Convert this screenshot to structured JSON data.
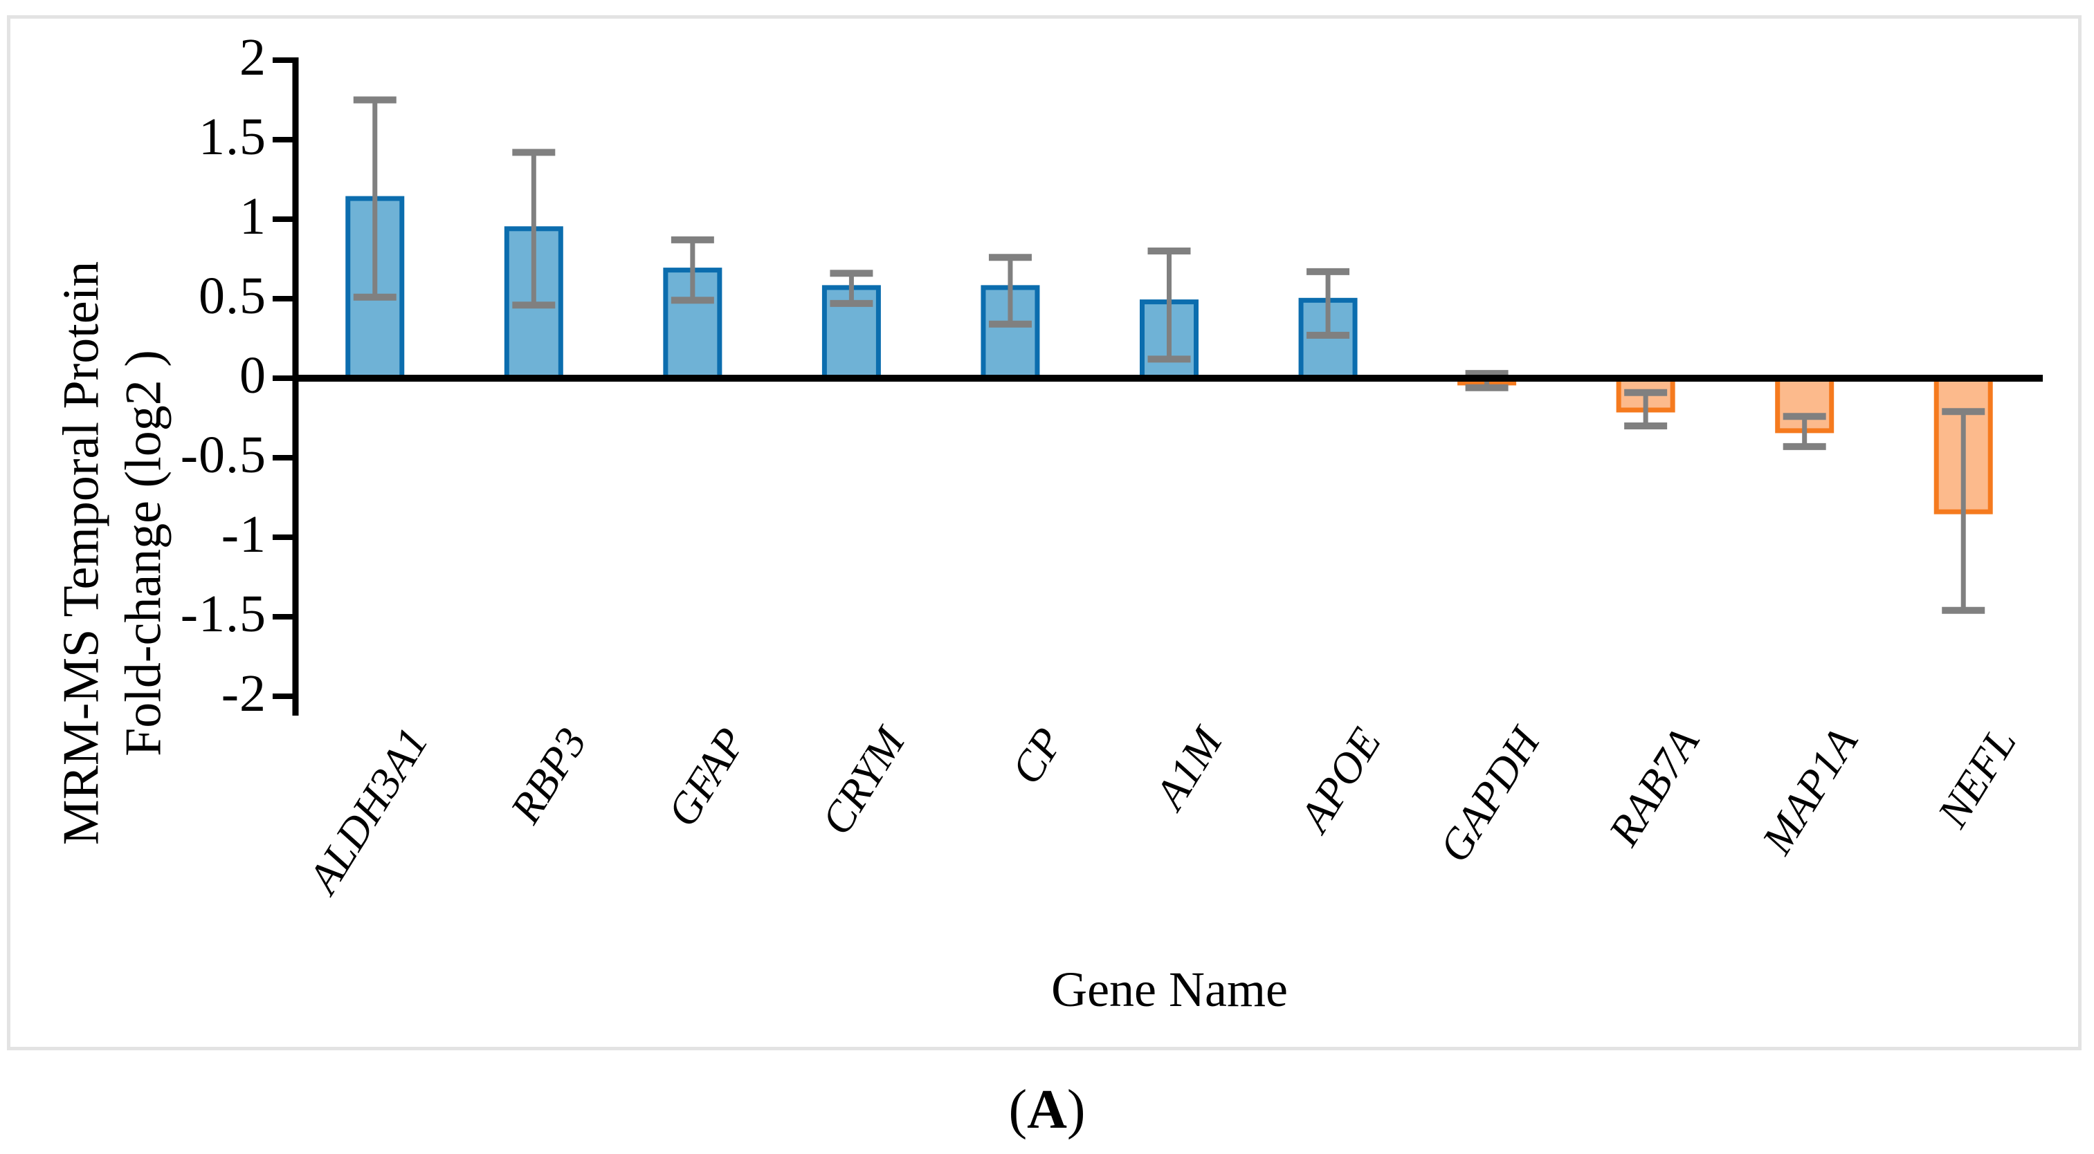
{
  "chart_data": {
    "type": "bar",
    "title": "",
    "categories": [
      "ALDH3A1",
      "RBP3",
      "GFAP",
      "CRYM",
      "CP",
      "A1M",
      "APOE",
      "GAPDH",
      "RAB7A",
      "MAP1A",
      "NEFL"
    ],
    "values": [
      1.13,
      0.94,
      0.68,
      0.57,
      0.57,
      0.48,
      0.49,
      -0.03,
      -0.2,
      -0.33,
      -0.84
    ],
    "error_high": [
      1.75,
      1.42,
      0.87,
      0.66,
      0.76,
      0.8,
      0.67,
      0.03,
      -0.09,
      -0.24,
      -0.21
    ],
    "error_low": [
      0.51,
      0.46,
      0.49,
      0.47,
      0.34,
      0.12,
      0.27,
      -0.06,
      -0.3,
      -0.43,
      -1.46
    ],
    "ylim": [
      -2,
      2
    ],
    "ytick_step": 0.5,
    "ytick_labels": [
      "2",
      "1.5",
      "1",
      "0.5",
      "0",
      "-0.5",
      "-1",
      "-1.5",
      "-2"
    ],
    "grid": false,
    "legend_position": "none",
    "ylabel_line1": "MRM-MS Temporal Protein",
    "ylabel_line2": "Fold-change (log2 )",
    "xlabel": "Gene Name",
    "caption_open": "(",
    "caption_letter": "A",
    "caption_close": ")",
    "colors": {
      "positive_fill": "#6FB2D6",
      "positive_border": "#0B6DAE",
      "negative_fill": "#FCBA8C",
      "negative_border": "#F57A1E",
      "error_bar": "#808080",
      "axis": "#000000",
      "frame_border": "#E3E3E3",
      "background": "#FFFFFF"
    }
  }
}
